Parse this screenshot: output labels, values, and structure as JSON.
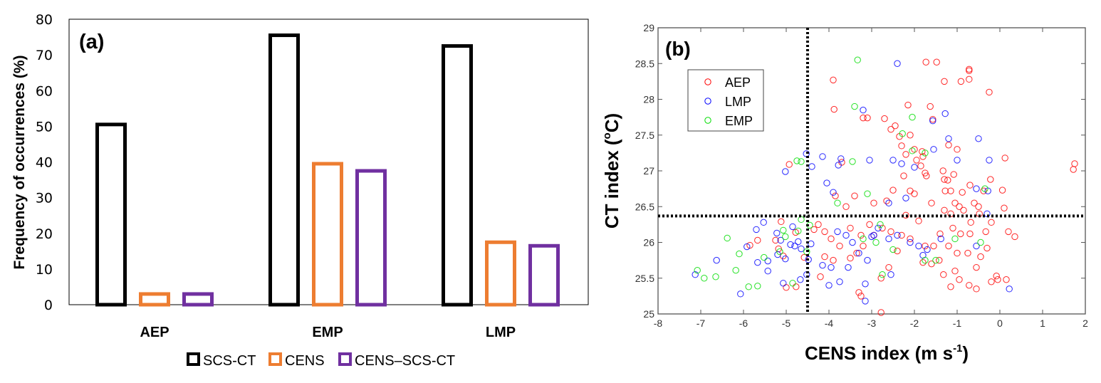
{
  "chart_data": [
    {
      "type": "bar",
      "panel_label": "(a)",
      "title": "",
      "xlabel": "",
      "ylabel": "Frequency of occurrences (%)",
      "ylim": [
        0,
        80
      ],
      "yticks": [
        "0",
        "10",
        "20",
        "30",
        "40",
        "50",
        "60",
        "70",
        "80"
      ],
      "categories": [
        "AEP",
        "EMP",
        "LMP"
      ],
      "legend_position": "bottom",
      "series": [
        {
          "name": "SCS-CT",
          "color": "#000000",
          "values": [
            51,
            76,
            73
          ]
        },
        {
          "name": "CENS",
          "color": "#ED7D31",
          "values": [
            3.5,
            40,
            18
          ]
        },
        {
          "name": "CENS–SCS-CT",
          "color": "#7030A0",
          "values": [
            3.5,
            38,
            17
          ]
        }
      ]
    },
    {
      "type": "scatter",
      "panel_label": "(b)",
      "title": "",
      "xlabel": "CENS index (m s⁻¹)",
      "xlabel_main": "CENS index (m s",
      "xlabel_sup": "-1",
      "xlabel_end": ")",
      "ylabel": "CT index (°C)",
      "ylabel_main": "CT index (",
      "ylabel_sup": "o",
      "ylabel_end": "C)",
      "xlim": [
        -8,
        2
      ],
      "ylim": [
        25,
        29
      ],
      "xticks": [
        "-8",
        "-7",
        "-6",
        "-5",
        "-4",
        "-3",
        "-2",
        "-1",
        "0",
        "1",
        "2"
      ],
      "yticks": [
        "25",
        "25.5",
        "26",
        "26.5",
        "27",
        "27.5",
        "28",
        "28.5",
        "29"
      ],
      "reference_lines": {
        "x": -4.5,
        "y": 26.37,
        "style": "dotted"
      },
      "legend_position": "top-left",
      "series": [
        {
          "name": "AEP",
          "color": "#FF0000",
          "points": [
            [
              -4.93,
              27.09
            ],
            [
              -5.12,
              26.29
            ],
            [
              -5.67,
              26.03
            ],
            [
              -5.85,
              25.96
            ],
            [
              -5.25,
              26.03
            ],
            [
              -5.18,
              25.91
            ],
            [
              -5.07,
              25.81
            ],
            [
              -5.0,
              25.37
            ],
            [
              -4.77,
              25.38
            ],
            [
              -4.58,
              25.79
            ],
            [
              -4.78,
              26.14
            ],
            [
              -4.35,
              26.18
            ],
            [
              -3.9,
              28.27
            ],
            [
              -3.88,
              27.86
            ],
            [
              -1.73,
              28.52
            ],
            [
              -3.2,
              27.74
            ],
            [
              -3.1,
              27.74
            ],
            [
              -2.45,
              27.63
            ],
            [
              -2.7,
              27.73
            ],
            [
              -2.15,
              27.92
            ],
            [
              -2.35,
              27.48
            ],
            [
              -2.55,
              27.58
            ],
            [
              -2.1,
              27.5
            ],
            [
              -2.3,
              27.35
            ],
            [
              -2.0,
              27.3
            ],
            [
              -1.82,
              27.27
            ],
            [
              -2.2,
              27.23
            ],
            [
              -1.95,
              27.15
            ],
            [
              -1.8,
              27.2
            ],
            [
              -1.85,
              27.07
            ],
            [
              -2.25,
              26.93
            ],
            [
              -1.75,
              26.97
            ],
            [
              -1.72,
              26.93
            ],
            [
              -3.7,
              27.12
            ],
            [
              -3.85,
              26.65
            ],
            [
              -2.95,
              26.55
            ],
            [
              -2.65,
              26.58
            ],
            [
              -2.5,
              26.73
            ],
            [
              -2.1,
              26.72
            ],
            [
              -2.0,
              26.68
            ],
            [
              -1.6,
              26.55
            ],
            [
              -3.5,
              26.2
            ],
            [
              -3.25,
              26.1
            ],
            [
              -1.48,
              28.52
            ],
            [
              -0.72,
              28.4
            ],
            [
              -0.72,
              28.42
            ],
            [
              -1.3,
              28.25
            ],
            [
              -0.72,
              28.28
            ],
            [
              -0.91,
              28.25
            ],
            [
              -0.25,
              28.1
            ],
            [
              -1.57,
              27.72
            ],
            [
              -1.63,
              27.9
            ],
            [
              -1.2,
              27.36
            ],
            [
              -1.0,
              27.3
            ],
            [
              -1.33,
              27.0
            ],
            [
              -1.08,
              26.95
            ],
            [
              -1.3,
              26.88
            ],
            [
              -1.22,
              26.87
            ],
            [
              -0.7,
              26.8
            ],
            [
              -1.28,
              26.72
            ],
            [
              -1.15,
              26.72
            ],
            [
              -0.88,
              26.7
            ],
            [
              -1.05,
              26.55
            ],
            [
              -1.3,
              26.45
            ],
            [
              -0.68,
              26.28
            ],
            [
              -0.5,
              26.5
            ],
            [
              -0.48,
              26.4
            ],
            [
              0.12,
              27.18
            ],
            [
              1.75,
              27.1
            ],
            [
              1.72,
              27.02
            ],
            [
              -0.95,
              26.5
            ],
            [
              -0.85,
              26.45
            ],
            [
              -0.6,
              26.55
            ],
            [
              -1.15,
              26.4
            ],
            [
              -0.38,
              26.72
            ],
            [
              -0.22,
              26.88
            ],
            [
              0.06,
              26.73
            ],
            [
              0.1,
              26.48
            ],
            [
              0.2,
              26.15
            ],
            [
              0.35,
              26.08
            ],
            [
              -0.2,
              26.28
            ],
            [
              -0.33,
              26.15
            ],
            [
              -0.92,
              26.12
            ],
            [
              -0.7,
              26.12
            ],
            [
              -1.1,
              26.2
            ],
            [
              -1.2,
              25.95
            ],
            [
              -1.0,
              25.85
            ],
            [
              -0.75,
              25.85
            ],
            [
              -0.55,
              25.65
            ],
            [
              -0.95,
              25.48
            ],
            [
              -0.72,
              25.4
            ],
            [
              -0.55,
              25.35
            ],
            [
              -0.2,
              25.45
            ],
            [
              0.15,
              25.48
            ],
            [
              -0.08,
              25.53
            ],
            [
              -0.05,
              25.48
            ],
            [
              -1.15,
              25.38
            ],
            [
              -1.32,
              25.55
            ],
            [
              -1.05,
              25.6
            ],
            [
              -1.42,
              25.75
            ],
            [
              -1.6,
              25.7
            ],
            [
              -1.75,
              25.95
            ],
            [
              -2.1,
              26.05
            ],
            [
              -2.3,
              26.1
            ],
            [
              -2.55,
              26.15
            ],
            [
              -2.75,
              26.2
            ],
            [
              -2.95,
              26.1
            ],
            [
              -3.05,
              26.25
            ],
            [
              -3.2,
              25.95
            ],
            [
              -3.35,
              25.85
            ],
            [
              -3.5,
              25.78
            ],
            [
              -3.75,
              25.95
            ],
            [
              -3.95,
              26.05
            ],
            [
              -4.1,
              26.15
            ],
            [
              -4.25,
              26.25
            ],
            [
              -4.1,
              25.8
            ],
            [
              -3.9,
              25.75
            ],
            [
              -4.2,
              25.52
            ],
            [
              -3.3,
              25.3
            ],
            [
              -3.25,
              25.25
            ],
            [
              -2.78,
              25.02
            ],
            [
              -2.78,
              25.5
            ],
            [
              -1.55,
              25.95
            ],
            [
              -1.8,
              25.72
            ],
            [
              -2.4,
              25.88
            ],
            [
              -2.6,
              25.65
            ],
            [
              -3.4,
              26.65
            ],
            [
              -3.6,
              26.5
            ],
            [
              -2.2,
              26.38
            ],
            [
              -1.9,
              26.3
            ],
            [
              -1.4,
              26.12
            ],
            [
              -0.3,
              25.92
            ],
            [
              -0.45,
              25.8
            ]
          ]
        },
        {
          "name": "LMP",
          "color": "#0000FF",
          "points": [
            [
              -4.53,
              27.24
            ],
            [
              -5.02,
              26.99
            ],
            [
              -4.4,
              27.06
            ],
            [
              -5.53,
              26.28
            ],
            [
              -5.7,
              26.18
            ],
            [
              -4.85,
              26.22
            ],
            [
              -5.92,
              25.94
            ],
            [
              -6.63,
              25.75
            ],
            [
              -7.13,
              25.55
            ],
            [
              -6.07,
              25.28
            ],
            [
              -5.67,
              25.72
            ],
            [
              -5.43,
              25.74
            ],
            [
              -5.43,
              25.6
            ],
            [
              -5.22,
              26.13
            ],
            [
              -5.13,
              26.03
            ],
            [
              -5.2,
              25.83
            ],
            [
              -5.02,
              25.77
            ],
            [
              -5.07,
              25.43
            ],
            [
              -4.67,
              25.48
            ],
            [
              -4.52,
              25.55
            ],
            [
              -4.48,
              25.76
            ],
            [
              -4.9,
              25.97
            ],
            [
              -4.8,
              25.95
            ],
            [
              -4.72,
              26.01
            ],
            [
              -4.65,
              25.91
            ],
            [
              -4.42,
              25.98
            ],
            [
              -4.15,
              27.2
            ],
            [
              -3.72,
              27.17
            ],
            [
              -3.78,
              27.08
            ],
            [
              -2.4,
              28.5
            ],
            [
              -3.2,
              27.85
            ],
            [
              -3.05,
              27.15
            ],
            [
              -2.5,
              27.15
            ],
            [
              -2.3,
              27.1
            ],
            [
              -2.0,
              27.05
            ],
            [
              -1.57,
              27.7
            ],
            [
              -1.28,
              27.8
            ],
            [
              -1.55,
              27.3
            ],
            [
              -1.2,
              27.45
            ],
            [
              -1.0,
              27.15
            ],
            [
              -0.5,
              27.45
            ],
            [
              -0.25,
              27.15
            ],
            [
              -0.55,
              26.75
            ],
            [
              -0.28,
              26.72
            ],
            [
              -4.05,
              26.83
            ],
            [
              -3.9,
              26.7
            ],
            [
              -2.6,
              26.55
            ],
            [
              -2.2,
              26.62
            ],
            [
              -0.3,
              26.4
            ],
            [
              -1.38,
              26.05
            ],
            [
              -0.55,
              25.95
            ],
            [
              0.22,
              25.35
            ],
            [
              -4.0,
              25.4
            ],
            [
              -3.75,
              25.45
            ],
            [
              -3.15,
              25.42
            ],
            [
              -3.15,
              25.18
            ],
            [
              -3.45,
              26.0
            ],
            [
              -3.6,
              26.1
            ],
            [
              -3.8,
              26.15
            ],
            [
              -3.3,
              25.85
            ],
            [
              -3.1,
              25.75
            ],
            [
              -2.85,
              26.2
            ],
            [
              -2.6,
              26.05
            ],
            [
              -2.4,
              26.1
            ],
            [
              -2.1,
              26.0
            ],
            [
              -1.9,
              25.95
            ],
            [
              -1.7,
              25.9
            ],
            [
              -2.95,
              26.1
            ],
            [
              -3.0,
              26.08
            ],
            [
              -3.55,
              25.65
            ],
            [
              -2.55,
              25.55
            ],
            [
              -1.8,
              25.82
            ],
            [
              -4.15,
              25.68
            ],
            [
              -3.95,
              25.65
            ]
          ]
        },
        {
          "name": "EMP",
          "color": "#00DD00",
          "points": [
            [
              -4.75,
              27.14
            ],
            [
              -4.65,
              27.13
            ],
            [
              -4.65,
              26.32
            ],
            [
              -6.38,
              26.06
            ],
            [
              -6.1,
              25.84
            ],
            [
              -7.08,
              25.61
            ],
            [
              -6.92,
              25.5
            ],
            [
              -6.65,
              25.52
            ],
            [
              -6.18,
              25.61
            ],
            [
              -5.88,
              25.38
            ],
            [
              -5.67,
              25.39
            ],
            [
              -5.52,
              25.79
            ],
            [
              -5.07,
              26.17
            ],
            [
              -5.02,
              26.08
            ],
            [
              -5.15,
              25.87
            ],
            [
              -4.85,
              25.43
            ],
            [
              -4.72,
              26.16
            ],
            [
              -4.52,
              25.87
            ],
            [
              -4.45,
              26.24
            ],
            [
              -3.33,
              28.55
            ],
            [
              -3.4,
              27.9
            ],
            [
              -3.45,
              27.13
            ],
            [
              -2.28,
              27.52
            ],
            [
              -2.05,
              27.75
            ],
            [
              -2.05,
              27.28
            ],
            [
              -1.75,
              27.25
            ],
            [
              -3.8,
              26.55
            ],
            [
              -3.1,
              26.68
            ],
            [
              -2.8,
              26.25
            ],
            [
              -3.2,
              26.05
            ],
            [
              -2.5,
              25.9
            ],
            [
              -2.75,
              25.55
            ],
            [
              -1.75,
              25.75
            ],
            [
              -1.5,
              25.75
            ],
            [
              -0.45,
              26.0
            ],
            [
              -0.35,
              26.75
            ],
            [
              -1.05,
              26.05
            ],
            [
              -2.9,
              26.0
            ]
          ]
        }
      ]
    }
  ]
}
